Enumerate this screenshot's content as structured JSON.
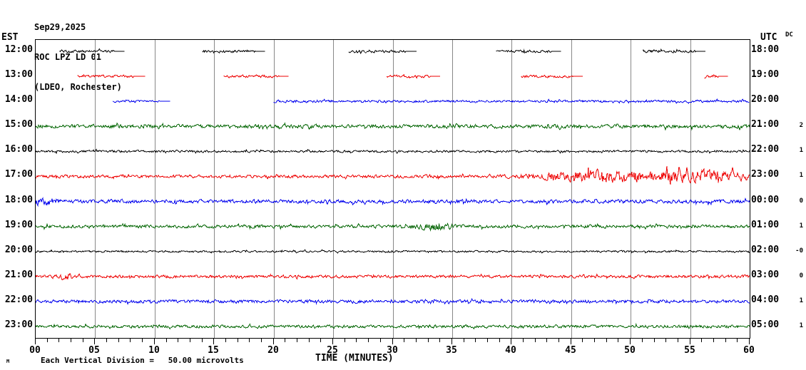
{
  "header": {
    "date": "Sep29,2025",
    "station": "ROC LPZ LD 01",
    "network": "(LDEO, Rochester)"
  },
  "axes": {
    "left_label": "EST",
    "right_label": "UTC",
    "dc_label": "DC",
    "x_label": "TIME (MINUTES)",
    "x_ticks": [
      "00",
      "05",
      "10",
      "15",
      "20",
      "25",
      "30",
      "35",
      "40",
      "45",
      "50",
      "55",
      "60"
    ]
  },
  "footnote": {
    "mark": "M",
    "text": "Each Vertical Division =   50.00 microvolts"
  },
  "colors": {
    "black": "#000000",
    "red": "#ee0000",
    "blue": "#0000ee",
    "green": "#006400",
    "grid": "#888888",
    "border": "#000000",
    "background": "#ffffff"
  },
  "chart_data": {
    "type": "line",
    "subtype": "seismogram-helicorder",
    "title": "ROC LPZ LD 01 (LDEO, Rochester) Sep29,2025",
    "xlabel": "TIME (MINUTES)",
    "x_range": [
      0,
      60
    ],
    "grid_interval_minutes": 5,
    "minor_tick_minutes": 1,
    "vertical_division_microvolts": 50.0,
    "rows": [
      {
        "est": "12:00",
        "utc": "18:00",
        "dc": "",
        "color": "black",
        "amplitude": 2.4,
        "segments": [
          [
            2.0,
            7.5
          ],
          [
            14.0,
            19.3
          ],
          [
            26.3,
            32.0
          ],
          [
            38.7,
            44.2
          ],
          [
            51.0,
            56.3
          ]
        ],
        "events": []
      },
      {
        "est": "13:00",
        "utc": "19:00",
        "dc": "",
        "color": "red",
        "amplitude": 2.4,
        "segments": [
          [
            3.5,
            9.2
          ],
          [
            15.8,
            21.3
          ],
          [
            29.5,
            34.0
          ],
          [
            40.8,
            46.0
          ],
          [
            56.2,
            58.2
          ]
        ],
        "events": []
      },
      {
        "est": "14:00",
        "utc": "20:00",
        "dc": "",
        "color": "blue",
        "amplitude": 2.2,
        "segments": [
          [
            6.5,
            11.3
          ],
          [
            20.0,
            60.0
          ]
        ],
        "events": []
      },
      {
        "est": "15:00",
        "utc": "21:00",
        "dc": "2",
        "color": "green",
        "amplitude": 3.4,
        "segments": [
          [
            0,
            60
          ]
        ],
        "events": []
      },
      {
        "est": "16:00",
        "utc": "22:00",
        "dc": "1",
        "color": "black",
        "amplitude": 2.0,
        "segments": [
          [
            0,
            60
          ]
        ],
        "events": []
      },
      {
        "est": "17:00",
        "utc": "23:00",
        "dc": "1",
        "color": "red",
        "amplitude": 2.8,
        "segments": [
          [
            0,
            60
          ]
        ],
        "events": [
          {
            "center": 45.0,
            "width": 2.5,
            "amp": 1.5
          },
          {
            "center": 50.5,
            "width": 6.5,
            "amp": 3.2
          },
          {
            "center": 57.5,
            "width": 3.0,
            "amp": 2.2
          }
        ]
      },
      {
        "est": "18:00",
        "utc": "00:00",
        "dc": "0",
        "color": "blue",
        "amplitude": 3.4,
        "segments": [
          [
            0,
            60
          ]
        ],
        "events": [
          {
            "center": 0.6,
            "width": 1.0,
            "amp": 1.5
          }
        ]
      },
      {
        "est": "19:00",
        "utc": "01:00",
        "dc": "1",
        "color": "green",
        "amplitude": 2.9,
        "segments": [
          [
            0,
            60
          ]
        ],
        "events": [
          {
            "center": 33.5,
            "width": 1.5,
            "amp": 1.6
          }
        ]
      },
      {
        "est": "20:00",
        "utc": "02:00",
        "dc": "-0",
        "color": "black",
        "amplitude": 1.7,
        "segments": [
          [
            0,
            60
          ]
        ],
        "events": []
      },
      {
        "est": "21:00",
        "utc": "03:00",
        "dc": "0",
        "color": "red",
        "amplitude": 2.7,
        "segments": [
          [
            0,
            60
          ]
        ],
        "events": [
          {
            "center": 2.5,
            "width": 1.2,
            "amp": 1.5
          }
        ]
      },
      {
        "est": "22:00",
        "utc": "04:00",
        "dc": "1",
        "color": "blue",
        "amplitude": 3.0,
        "segments": [
          [
            0,
            60
          ]
        ],
        "events": []
      },
      {
        "est": "23:00",
        "utc": "05:00",
        "dc": "1",
        "color": "green",
        "amplitude": 2.7,
        "segments": [
          [
            0,
            60
          ]
        ],
        "events": []
      }
    ]
  }
}
